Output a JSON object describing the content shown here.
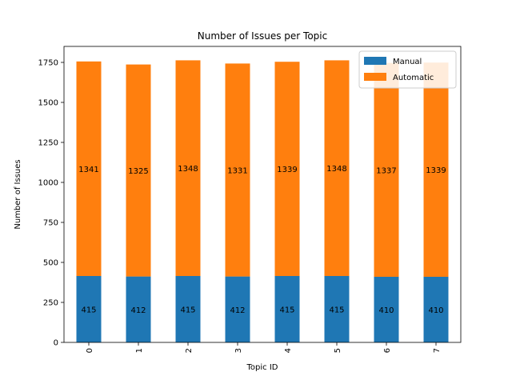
{
  "chart_data": {
    "type": "bar",
    "stacked": true,
    "title": "Number of Issues per Topic",
    "xlabel": "Topic ID",
    "ylabel": "Number of Issues",
    "categories": [
      "0",
      "1",
      "2",
      "3",
      "4",
      "5",
      "6",
      "7"
    ],
    "ylim": [
      0,
      1850
    ],
    "yticks": [
      0,
      250,
      500,
      750,
      1000,
      1250,
      1500,
      1750
    ],
    "series": [
      {
        "name": "Manual",
        "color": "#1f77b4",
        "values": [
          415,
          412,
          415,
          412,
          415,
          415,
          410,
          410
        ]
      },
      {
        "name": "Automatic",
        "color": "#ff7f0e",
        "values": [
          1341,
          1325,
          1348,
          1331,
          1339,
          1348,
          1337,
          1339
        ]
      }
    ],
    "legend_position": "top-right",
    "grid": false
  }
}
